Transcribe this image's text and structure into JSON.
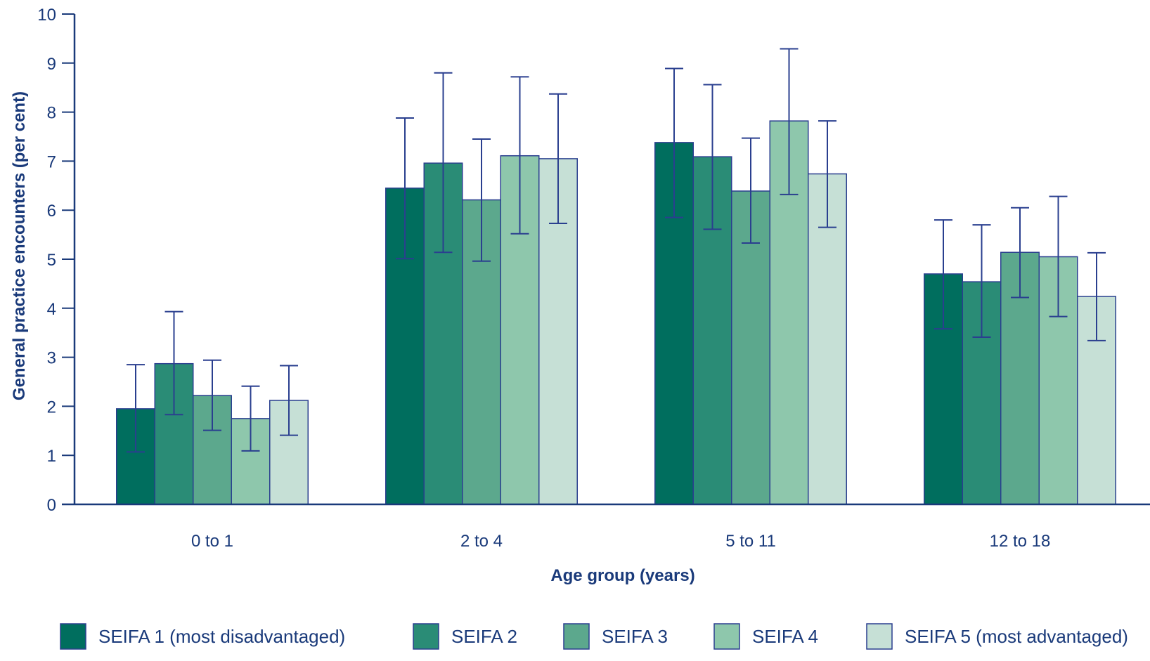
{
  "chart_data": {
    "type": "bar",
    "categories": [
      "0 to 1",
      "2 to 4",
      "5 to 11",
      "12 to 18"
    ],
    "xlabel": "Age group (years)",
    "ylabel": "General practice encounters (per cent)",
    "ylim": [
      0,
      10
    ],
    "yticks": [
      "0",
      "1",
      "2",
      "3",
      "4",
      "5",
      "6",
      "7",
      "8",
      "9",
      "10"
    ],
    "grid": false,
    "legend_position": "bottom",
    "error_bars": true,
    "series": [
      {
        "name": "SEIFA 1 (most disadvantaged)",
        "color": "#006e5e",
        "values": [
          1.95,
          6.45,
          7.38,
          4.7
        ],
        "lower": [
          1.07,
          5.01,
          5.85,
          3.58
        ],
        "upper": [
          2.85,
          7.88,
          8.89,
          5.8
        ]
      },
      {
        "name": "SEIFA 2",
        "color": "#2a8c76",
        "values": [
          2.87,
          6.96,
          7.09,
          4.54
        ],
        "lower": [
          1.83,
          5.14,
          5.61,
          3.41
        ],
        "upper": [
          3.93,
          8.8,
          8.56,
          5.7
        ]
      },
      {
        "name": "SEIFA 3",
        "color": "#5ca88d",
        "values": [
          2.22,
          6.21,
          6.39,
          5.14
        ],
        "lower": [
          1.51,
          4.96,
          5.33,
          4.22
        ],
        "upper": [
          2.94,
          7.45,
          7.47,
          6.05
        ]
      },
      {
        "name": "SEIFA 4",
        "color": "#8ec7ac",
        "values": [
          1.75,
          7.11,
          7.82,
          5.05
        ],
        "lower": [
          1.09,
          5.52,
          6.32,
          3.83
        ],
        "upper": [
          2.41,
          8.72,
          9.29,
          6.28
        ]
      },
      {
        "name": "SEIFA 5 (most advantaged)",
        "color": "#c6e0d6",
        "values": [
          2.12,
          7.05,
          6.74,
          4.24
        ],
        "lower": [
          1.41,
          5.73,
          5.65,
          3.34
        ],
        "upper": [
          2.83,
          8.37,
          7.82,
          5.13
        ]
      }
    ]
  },
  "colors": {
    "axis": "#1a3a7a",
    "bar_outline": "#2a3f8f",
    "error_bar": "#2a3f8f"
  }
}
